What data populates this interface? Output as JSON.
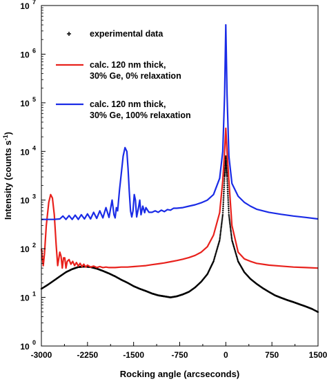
{
  "chart_data": {
    "type": "line",
    "xlabel": "Rocking angle (arcseconds)",
    "ylabel_main": "Intensity (counts s",
    "ylabel_sup": "-1",
    "ylabel_close": ")",
    "xlim": [
      -3000,
      1500
    ],
    "ylim": [
      1,
      10000000
    ],
    "yscale": "log",
    "grid": false,
    "x_ticks": [
      -3000,
      -2250,
      -1500,
      -750,
      0,
      750,
      1500
    ],
    "x_tick_labels": [
      "-3000",
      "-2250",
      "-1500",
      "-750",
      "0",
      "750",
      "1500"
    ],
    "y_ticks": [
      1,
      10,
      100,
      1000,
      10000,
      100000,
      1000000,
      10000000
    ],
    "y_tick_labels": [
      {
        "base": "10",
        "exp": "0"
      },
      {
        "base": "10",
        "exp": "1"
      },
      {
        "base": "10",
        "exp": "2"
      },
      {
        "base": "10",
        "exp": "3"
      },
      {
        "base": "10",
        "exp": "4"
      },
      {
        "base": "10",
        "exp": "5"
      },
      {
        "base": "10",
        "exp": "6"
      },
      {
        "base": "10",
        "exp": "7"
      }
    ],
    "legend_position": "top-left",
    "series": [
      {
        "name": "experimental data",
        "style": "markers",
        "color": "#000000",
        "x": [
          -3000,
          -2900,
          -2800,
          -2700,
          -2600,
          -2500,
          -2400,
          -2300,
          -2200,
          -2100,
          -2000,
          -1900,
          -1800,
          -1700,
          -1600,
          -1500,
          -1400,
          -1300,
          -1200,
          -1100,
          -1000,
          -900,
          -800,
          -700,
          -600,
          -500,
          -400,
          -300,
          -200,
          -100,
          -50,
          -20,
          0,
          20,
          50,
          100,
          200,
          300,
          400,
          500,
          600,
          700,
          800,
          900,
          1000,
          1100,
          1200,
          1300,
          1400,
          1500
        ],
        "y": [
          15,
          18,
          22,
          27,
          33,
          38,
          42,
          43,
          42,
          39,
          35,
          31,
          27,
          23,
          20,
          17,
          15,
          13.5,
          12,
          11,
          10.5,
          10,
          10.5,
          11.5,
          13,
          16,
          21,
          30,
          55,
          150,
          500,
          3000,
          8000,
          3000,
          500,
          150,
          55,
          33,
          24,
          19,
          15.5,
          13,
          11,
          9.8,
          8.8,
          8,
          7.2,
          6.5,
          5.8,
          5
        ]
      },
      {
        "name": "calc. 120 nm thick, 30% Ge, 0% relaxation",
        "style": "line",
        "color": "#e8211c",
        "x": [
          -3000,
          -2970,
          -2950,
          -2920,
          -2880,
          -2850,
          -2820,
          -2790,
          -2760,
          -2735,
          -2720,
          -2700,
          -2680,
          -2660,
          -2640,
          -2620,
          -2600,
          -2580,
          -2550,
          -2520,
          -2490,
          -2460,
          -2430,
          -2400,
          -2370,
          -2340,
          -2310,
          -2280,
          -2250,
          -2200,
          -2150,
          -2100,
          -2050,
          -2000,
          -1950,
          -1900,
          -1800,
          -1700,
          -1600,
          -1500,
          -1400,
          -1300,
          -1200,
          -1100,
          -1000,
          -900,
          -800,
          -700,
          -600,
          -500,
          -400,
          -300,
          -200,
          -100,
          -50,
          -20,
          0,
          20,
          50,
          100,
          200,
          300,
          400,
          500,
          700,
          900,
          1100,
          1300,
          1500
        ],
        "y": [
          100,
          45,
          80,
          300,
          900,
          1300,
          1100,
          500,
          120,
          45,
          60,
          85,
          70,
          40,
          65,
          65,
          40,
          55,
          60,
          48,
          55,
          45,
          52,
          44,
          50,
          43,
          48,
          42,
          46,
          42,
          44,
          41,
          43,
          41,
          42,
          41,
          41,
          42,
          42,
          43,
          44,
          45,
          47,
          49,
          51,
          54,
          57,
          61,
          66,
          73,
          85,
          110,
          190,
          550,
          2500,
          10000,
          30000,
          10000,
          2500,
          300,
          85,
          62,
          55,
          50,
          46,
          44,
          42,
          41,
          40
        ]
      },
      {
        "name": "calc. 120 nm thick, 30% Ge, 100% relaxation",
        "style": "line",
        "color": "#1a2be6",
        "x": [
          -3000,
          -2800,
          -2700,
          -2650,
          -2600,
          -2550,
          -2500,
          -2450,
          -2400,
          -2350,
          -2300,
          -2250,
          -2200,
          -2150,
          -2100,
          -2050,
          -2000,
          -1950,
          -1900,
          -1850,
          -1820,
          -1800,
          -1780,
          -1760,
          -1730,
          -1700,
          -1670,
          -1640,
          -1610,
          -1590,
          -1570,
          -1550,
          -1530,
          -1510,
          -1490,
          -1470,
          -1450,
          -1420,
          -1400,
          -1380,
          -1350,
          -1320,
          -1300,
          -1250,
          -1200,
          -1150,
          -1100,
          -1050,
          -1000,
          -950,
          -900,
          -850,
          -800,
          -700,
          -600,
          -500,
          -400,
          -300,
          -200,
          -100,
          -50,
          -20,
          0,
          20,
          50,
          100,
          200,
          300,
          400,
          500,
          700,
          900,
          1100,
          1300,
          1500
        ],
        "y": [
          400,
          400,
          410,
          470,
          400,
          480,
          400,
          490,
          400,
          500,
          410,
          520,
          410,
          560,
          420,
          600,
          430,
          700,
          440,
          1000,
          500,
          430,
          700,
          600,
          1600,
          3500,
          8000,
          12000,
          10000,
          4500,
          1500,
          600,
          450,
          600,
          1300,
          1000,
          450,
          700,
          1000,
          500,
          750,
          550,
          700,
          560,
          560,
          600,
          560,
          620,
          580,
          640,
          620,
          680,
          680,
          700,
          750,
          800,
          880,
          1000,
          1300,
          2800,
          10000,
          150000,
          4000000,
          150000,
          8000,
          2200,
          1200,
          900,
          750,
          650,
          560,
          510,
          470,
          440,
          410
        ]
      }
    ]
  }
}
